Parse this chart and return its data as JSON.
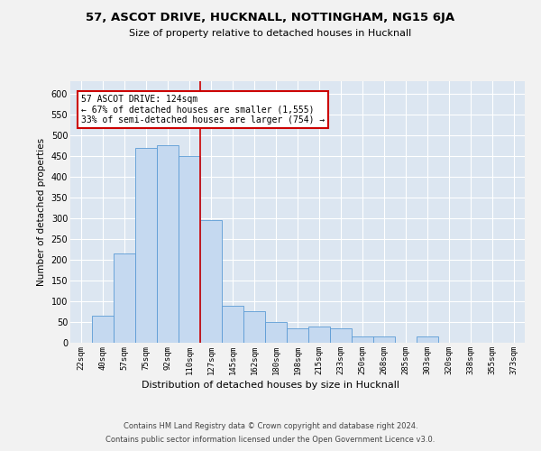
{
  "title1": "57, ASCOT DRIVE, HUCKNALL, NOTTINGHAM, NG15 6JA",
  "title2": "Size of property relative to detached houses in Hucknall",
  "xlabel": "Distribution of detached houses by size in Hucknall",
  "ylabel": "Number of detached properties",
  "categories": [
    "22sqm",
    "40sqm",
    "57sqm",
    "75sqm",
    "92sqm",
    "110sqm",
    "127sqm",
    "145sqm",
    "162sqm",
    "180sqm",
    "198sqm",
    "215sqm",
    "233sqm",
    "250sqm",
    "268sqm",
    "285sqm",
    "303sqm",
    "320sqm",
    "338sqm",
    "355sqm",
    "373sqm"
  ],
  "values": [
    0,
    65,
    215,
    470,
    475,
    450,
    295,
    90,
    75,
    50,
    35,
    40,
    35,
    15,
    15,
    0,
    15,
    0,
    0,
    0,
    0
  ],
  "bar_color": "#c5d9f0",
  "bar_edge_color": "#5b9bd5",
  "bg_color": "#dce6f1",
  "grid_color": "#ffffff",
  "vline_x": 5.5,
  "vline_color": "#cc0000",
  "annotation_text": "57 ASCOT DRIVE: 124sqm\n← 67% of detached houses are smaller (1,555)\n33% of semi-detached houses are larger (754) →",
  "annotation_box_color": "#ffffff",
  "annotation_box_edge": "#cc0000",
  "ylim": [
    0,
    630
  ],
  "yticks": [
    0,
    50,
    100,
    150,
    200,
    250,
    300,
    350,
    400,
    450,
    500,
    550,
    600
  ],
  "fig_bg": "#f2f2f2",
  "footnote1": "Contains HM Land Registry data © Crown copyright and database right 2024.",
  "footnote2": "Contains public sector information licensed under the Open Government Licence v3.0."
}
